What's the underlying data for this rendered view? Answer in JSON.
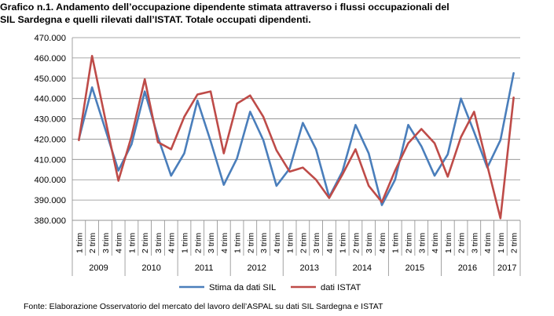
{
  "title_lines": [
    "Grafico n.1. Andamento dell’occupazione dipendente stimata attraverso i flussi occupazionali del",
    "SIL Sardegna e quelli rilevati dall’ISTAT. Totale occupati dipendenti."
  ],
  "source": "Fonte: Elaborazione Osservatorio del mercato del lavoro dell’ASPAL su dati SIL Sardegna e ISTAT",
  "chart_data": {
    "type": "line",
    "title": "Grafico n.1. Andamento dell’occupazione dipendente stimata attraverso i flussi occupazionali del SIL Sardegna e quelli rilevati dall’ISTAT. Totale occupati dipendenti.",
    "x": [
      "1 trim",
      "2 trim",
      "3 trim",
      "4 trim",
      "1 trim",
      "2 trim",
      "3 trim",
      "4 trim",
      "1 trim",
      "2 trim",
      "3 trim",
      "4 trim",
      "1 trim",
      "2 trim",
      "3 trim",
      "4 trim",
      "1 trim",
      "2 trim",
      "3 trim",
      "4 trim",
      "1 trim",
      "2 trim",
      "3 trim",
      "4 trim",
      "1 trim",
      "2 trim",
      "3 trim",
      "4 trim",
      "1 trim",
      "2 trim",
      "3 trim",
      "4 trim",
      "1 trim",
      "2 trim"
    ],
    "years": [
      {
        "label": "2009",
        "count": 4
      },
      {
        "label": "2010",
        "count": 4
      },
      {
        "label": "2011",
        "count": 4
      },
      {
        "label": "2012",
        "count": 4
      },
      {
        "label": "2013",
        "count": 4
      },
      {
        "label": "2014",
        "count": 4
      },
      {
        "label": "2015",
        "count": 4
      },
      {
        "label": "2016",
        "count": 4
      },
      {
        "label": "2017",
        "count": 2
      }
    ],
    "yticks": [
      "380.000",
      "390.000",
      "400.000",
      "410.000",
      "420.000",
      "430.000",
      "440.000",
      "450.000",
      "460.000",
      "470.000"
    ],
    "ylim": [
      380000,
      470000
    ],
    "grid": true,
    "legend_position": "bottom",
    "series": [
      {
        "name": "Stima da dati SIL",
        "color": "#4a7ebb",
        "values": [
          420000,
          445500,
          425000,
          404500,
          417500,
          443500,
          421000,
          402000,
          413000,
          439000,
          419000,
          397500,
          410500,
          433500,
          419500,
          397000,
          405500,
          428000,
          415000,
          391500,
          404000,
          427000,
          413000,
          387500,
          400000,
          427000,
          416500,
          402000,
          412500,
          440000,
          423500,
          406000,
          419500,
          452500
        ]
      },
      {
        "name": "dati ISTAT",
        "color": "#be4b48",
        "values": [
          419500,
          461000,
          430000,
          399500,
          421500,
          449500,
          418500,
          415000,
          431000,
          442000,
          443500,
          413000,
          437500,
          441500,
          431000,
          414500,
          404000,
          406000,
          400000,
          391000,
          402500,
          415000,
          397000,
          389000,
          404500,
          418000,
          425000,
          418000,
          401500,
          421000,
          433500,
          407000,
          381000,
          440500
        ]
      }
    ]
  }
}
